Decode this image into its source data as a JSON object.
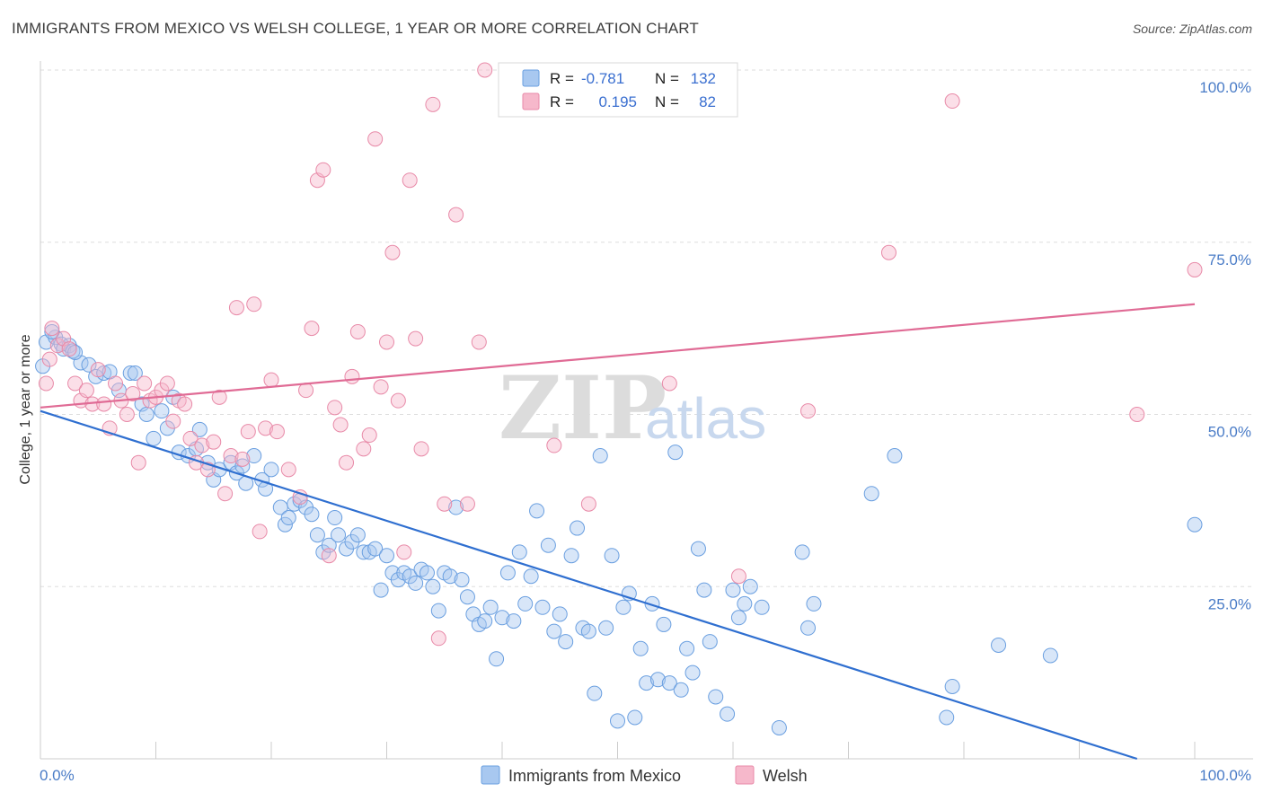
{
  "title": "IMMIGRANTS FROM MEXICO VS WELSH COLLEGE, 1 YEAR OR MORE CORRELATION CHART",
  "source": "Source: ZipAtlas.com",
  "watermark": {
    "zip": "ZIP",
    "atlas": "atlas"
  },
  "stats": {
    "r_label": "R =",
    "n_label": "N =",
    "rows": [
      {
        "r": "-0.781",
        "n": "132",
        "color": "#a8c8f0"
      },
      {
        "r": "0.195",
        "n": "82",
        "color": "#f6b8cb"
      }
    ]
  },
  "legend": [
    {
      "name": "Immigrants from Mexico",
      "color": "#a8c8f0"
    },
    {
      "name": "Welsh",
      "color": "#f6b8cb"
    }
  ],
  "chart_data": {
    "type": "scatter",
    "xlabel": "",
    "ylabel": "College, 1 year or more",
    "xlim": [
      0,
      100
    ],
    "ylim": [
      0,
      100
    ],
    "x_tick_labels": [
      "0.0%",
      "100.0%"
    ],
    "y_ticks": [
      25,
      50,
      75,
      100
    ],
    "y_tick_labels": [
      "25.0%",
      "50.0%",
      "75.0%",
      "100.0%"
    ],
    "grid": true,
    "legend_position": "bottom",
    "series": [
      {
        "name": "Immigrants from Mexico",
        "color": "#6a9fe0",
        "fill": "#a8c8f0",
        "trend": {
          "x": [
            0,
            95
          ],
          "y": [
            50.5,
            0
          ]
        },
        "points": [
          [
            0.5,
            60.5
          ],
          [
            1.3,
            61.2
          ],
          [
            1.8,
            60.2
          ],
          [
            2.0,
            59.5
          ],
          [
            2.5,
            60.0
          ],
          [
            2.8,
            59.2
          ],
          [
            3.5,
            57.5
          ],
          [
            4.2,
            57.2
          ],
          [
            4.8,
            55.5
          ],
          [
            5.5,
            56.0
          ],
          [
            6.0,
            56.2
          ],
          [
            6.8,
            53.5
          ],
          [
            7.8,
            56.0
          ],
          [
            8.2,
            56.0
          ],
          [
            8.8,
            51.5
          ],
          [
            9.2,
            50.0
          ],
          [
            9.8,
            46.5
          ],
          [
            10.5,
            50.5
          ],
          [
            11.0,
            48.0
          ],
          [
            11.5,
            52.5
          ],
          [
            12.0,
            44.5
          ],
          [
            12.8,
            44.0
          ],
          [
            13.5,
            45.0
          ],
          [
            13.8,
            47.8
          ],
          [
            14.5,
            43.0
          ],
          [
            15.0,
            40.5
          ],
          [
            15.5,
            42.0
          ],
          [
            16.5,
            43.0
          ],
          [
            17.0,
            41.5
          ],
          [
            17.5,
            42.5
          ],
          [
            17.8,
            40.0
          ],
          [
            18.5,
            44.0
          ],
          [
            19.2,
            40.5
          ],
          [
            19.5,
            39.2
          ],
          [
            20.0,
            42.0
          ],
          [
            20.8,
            36.5
          ],
          [
            21.2,
            34.0
          ],
          [
            21.5,
            35.0
          ],
          [
            22.0,
            37.0
          ],
          [
            22.5,
            37.5
          ],
          [
            23.0,
            36.5
          ],
          [
            23.5,
            35.5
          ],
          [
            24.0,
            32.5
          ],
          [
            24.5,
            30.0
          ],
          [
            25.0,
            31.0
          ],
          [
            25.5,
            35.0
          ],
          [
            25.8,
            32.5
          ],
          [
            26.5,
            30.5
          ],
          [
            27.0,
            31.5
          ],
          [
            27.5,
            32.5
          ],
          [
            28.0,
            30.0
          ],
          [
            28.5,
            30.0
          ],
          [
            29.0,
            30.5
          ],
          [
            29.5,
            24.5
          ],
          [
            30.0,
            29.5
          ],
          [
            30.5,
            27.0
          ],
          [
            31.0,
            26.0
          ],
          [
            31.5,
            27.0
          ],
          [
            32.0,
            26.5
          ],
          [
            32.5,
            25.5
          ],
          [
            33.0,
            27.5
          ],
          [
            33.5,
            27.0
          ],
          [
            34.0,
            25.0
          ],
          [
            34.5,
            21.5
          ],
          [
            35.0,
            27.0
          ],
          [
            35.5,
            26.5
          ],
          [
            36.0,
            36.5
          ],
          [
            36.5,
            26.0
          ],
          [
            37.0,
            23.5
          ],
          [
            37.5,
            21.0
          ],
          [
            38.0,
            19.5
          ],
          [
            38.5,
            20.0
          ],
          [
            39.0,
            22.0
          ],
          [
            39.5,
            14.5
          ],
          [
            40.0,
            20.5
          ],
          [
            40.5,
            27.0
          ],
          [
            41.0,
            20.0
          ],
          [
            41.5,
            30.0
          ],
          [
            42.0,
            22.5
          ],
          [
            42.5,
            26.5
          ],
          [
            43.0,
            36.0
          ],
          [
            43.5,
            22.0
          ],
          [
            44.0,
            31.0
          ],
          [
            44.5,
            18.5
          ],
          [
            45.0,
            21.0
          ],
          [
            45.5,
            17.0
          ],
          [
            46.0,
            29.5
          ],
          [
            46.5,
            33.5
          ],
          [
            47.0,
            19.0
          ],
          [
            47.5,
            18.5
          ],
          [
            48.0,
            9.5
          ],
          [
            48.5,
            44.0
          ],
          [
            49.0,
            19.0
          ],
          [
            49.5,
            29.5
          ],
          [
            50.0,
            5.5
          ],
          [
            50.5,
            22.0
          ],
          [
            51.0,
            24.0
          ],
          [
            51.5,
            6.0
          ],
          [
            52.0,
            16.0
          ],
          [
            52.5,
            11.0
          ],
          [
            53.0,
            22.5
          ],
          [
            53.5,
            11.5
          ],
          [
            54.0,
            19.5
          ],
          [
            54.5,
            11.0
          ],
          [
            55.0,
            44.5
          ],
          [
            55.5,
            10.0
          ],
          [
            56.0,
            16.0
          ],
          [
            56.5,
            12.5
          ],
          [
            57.0,
            30.5
          ],
          [
            57.5,
            24.5
          ],
          [
            58.0,
            17.0
          ],
          [
            58.5,
            9.0
          ],
          [
            59.5,
            6.5
          ],
          [
            60.0,
            24.5
          ],
          [
            60.5,
            20.5
          ],
          [
            61.0,
            22.5
          ],
          [
            61.5,
            25.0
          ],
          [
            62.5,
            22.0
          ],
          [
            64.0,
            4.5
          ],
          [
            66.0,
            30.0
          ],
          [
            66.5,
            19.0
          ],
          [
            67.0,
            22.5
          ],
          [
            72.0,
            38.5
          ],
          [
            74.0,
            44.0
          ],
          [
            78.5,
            6.0
          ],
          [
            79.0,
            10.5
          ],
          [
            83.0,
            16.5
          ],
          [
            87.5,
            15.0
          ],
          [
            100.0,
            34.0
          ],
          [
            0.2,
            57.0
          ],
          [
            1.0,
            62.0
          ],
          [
            3.0,
            59.0
          ]
        ]
      },
      {
        "name": "Welsh",
        "color": "#e88aa8",
        "fill": "#f6b8cb",
        "trend": {
          "x": [
            0,
            100
          ],
          "y": [
            51.0,
            66.0
          ]
        },
        "points": [
          [
            0.5,
            54.5
          ],
          [
            1.0,
            62.5
          ],
          [
            1.5,
            60.0
          ],
          [
            2.0,
            61.0
          ],
          [
            2.5,
            59.5
          ],
          [
            3.0,
            54.5
          ],
          [
            3.5,
            52.0
          ],
          [
            4.0,
            53.5
          ],
          [
            4.5,
            51.5
          ],
          [
            5.0,
            56.5
          ],
          [
            5.5,
            51.5
          ],
          [
            6.0,
            48.0
          ],
          [
            6.5,
            54.5
          ],
          [
            7.0,
            52.0
          ],
          [
            7.5,
            50.0
          ],
          [
            8.0,
            53.0
          ],
          [
            8.5,
            43.0
          ],
          [
            9.0,
            54.5
          ],
          [
            9.5,
            52.0
          ],
          [
            10.0,
            52.5
          ],
          [
            10.5,
            53.5
          ],
          [
            11.0,
            54.5
          ],
          [
            11.5,
            49.0
          ],
          [
            12.0,
            52.0
          ],
          [
            12.5,
            51.5
          ],
          [
            13.0,
            46.5
          ],
          [
            13.5,
            43.0
          ],
          [
            14.0,
            45.5
          ],
          [
            14.5,
            42.0
          ],
          [
            15.0,
            46.0
          ],
          [
            15.5,
            52.5
          ],
          [
            16.0,
            38.5
          ],
          [
            16.5,
            44.0
          ],
          [
            17.0,
            65.5
          ],
          [
            17.5,
            43.5
          ],
          [
            18.0,
            47.5
          ],
          [
            18.5,
            66.0
          ],
          [
            19.0,
            33.0
          ],
          [
            19.5,
            48.0
          ],
          [
            20.0,
            55.0
          ],
          [
            20.5,
            47.5
          ],
          [
            21.5,
            42.0
          ],
          [
            22.5,
            38.0
          ],
          [
            23.0,
            53.5
          ],
          [
            23.5,
            62.5
          ],
          [
            24.0,
            84.0
          ],
          [
            24.5,
            85.5
          ],
          [
            25.0,
            29.5
          ],
          [
            25.5,
            51.0
          ],
          [
            26.0,
            48.5
          ],
          [
            26.5,
            43.0
          ],
          [
            27.0,
            55.5
          ],
          [
            27.5,
            62.0
          ],
          [
            28.0,
            45.0
          ],
          [
            28.5,
            47.0
          ],
          [
            29.0,
            90.0
          ],
          [
            29.5,
            54.0
          ],
          [
            30.0,
            60.5
          ],
          [
            30.5,
            73.5
          ],
          [
            31.0,
            52.0
          ],
          [
            31.5,
            30.0
          ],
          [
            32.0,
            84.0
          ],
          [
            32.5,
            61.0
          ],
          [
            33.0,
            45.0
          ],
          [
            34.0,
            95.0
          ],
          [
            34.5,
            17.5
          ],
          [
            35.0,
            37.0
          ],
          [
            36.0,
            79.0
          ],
          [
            37.0,
            37.0
          ],
          [
            38.0,
            60.5
          ],
          [
            38.5,
            100.0
          ],
          [
            40.5,
            100.0
          ],
          [
            44.5,
            45.5
          ],
          [
            47.5,
            37.0
          ],
          [
            54.5,
            54.5
          ],
          [
            60.5,
            26.5
          ],
          [
            66.5,
            50.5
          ],
          [
            73.5,
            73.5
          ],
          [
            79.0,
            95.5
          ],
          [
            95.0,
            50.0
          ],
          [
            100.0,
            71.0
          ],
          [
            0.8,
            58.0
          ]
        ]
      }
    ]
  }
}
